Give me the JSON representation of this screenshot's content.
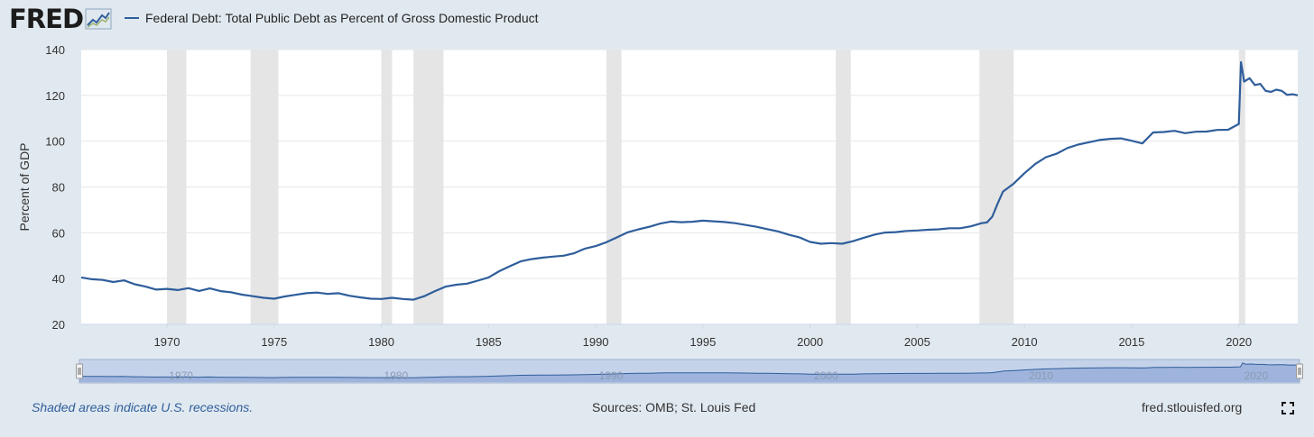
{
  "logo": {
    "text": "FRED",
    "icon": "chart-line-icon"
  },
  "legend": {
    "label": "Federal Debt: Total Public Debt as Percent of Gross Domestic Product",
    "color": "#2f5e9b"
  },
  "footer": {
    "recessions_note": "Shaded areas indicate U.S. recessions.",
    "sources": "Sources: OMB; St. Louis Fed",
    "site": "fred.stlouisfed.org",
    "fullscreen_icon": "fullscreen-icon"
  },
  "chart_data": {
    "type": "line",
    "title": "Federal Debt: Total Public Debt as Percent of Gross Domestic Product",
    "xlabel": "",
    "ylabel": "Percent of GDP",
    "xlim": [
      1966,
      2022.75
    ],
    "ylim": [
      20,
      140
    ],
    "yticks": [
      20,
      40,
      60,
      80,
      100,
      120,
      140
    ],
    "ytick_labels": [
      "20",
      "40",
      "60",
      "80",
      "100",
      "120",
      "140"
    ],
    "xticks": [
      1970,
      1975,
      1980,
      1985,
      1990,
      1995,
      2000,
      2005,
      2010,
      2015,
      2020
    ],
    "xtick_labels": [
      "1970",
      "1975",
      "1980",
      "1985",
      "1990",
      "1995",
      "2000",
      "2005",
      "2010",
      "2015",
      "2020"
    ],
    "navigator_ticks": [
      "1970",
      "1980",
      "1990",
      "2000",
      "2010",
      "2020"
    ],
    "grid": true,
    "line_color": "#2f5e9b",
    "recession_color": "#e5e5e5",
    "recessions": [
      [
        1970.0,
        1970.9
      ],
      [
        1973.9,
        1975.2
      ],
      [
        1980.0,
        1980.5
      ],
      [
        1981.5,
        1982.9
      ],
      [
        1990.5,
        1991.2
      ],
      [
        2001.2,
        2001.9
      ],
      [
        2007.9,
        2009.5
      ],
      [
        2020.0,
        2020.3
      ]
    ],
    "series": [
      {
        "name": "Federal Debt: Total Public Debt as Percent of Gross Domestic Product",
        "x": [
          1966.0,
          1966.5,
          1967.0,
          1967.5,
          1968.0,
          1968.5,
          1969.0,
          1969.5,
          1970.0,
          1970.5,
          1971.0,
          1971.5,
          1972.0,
          1972.5,
          1973.0,
          1973.5,
          1974.0,
          1974.5,
          1975.0,
          1975.5,
          1976.0,
          1976.5,
          1977.0,
          1977.5,
          1978.0,
          1978.5,
          1979.0,
          1979.5,
          1980.0,
          1980.5,
          1981.0,
          1981.5,
          1982.0,
          1982.5,
          1983.0,
          1983.5,
          1984.0,
          1984.5,
          1985.0,
          1985.5,
          1986.0,
          1986.5,
          1987.0,
          1987.5,
          1988.0,
          1988.5,
          1989.0,
          1989.5,
          1990.0,
          1990.5,
          1991.0,
          1991.5,
          1992.0,
          1992.5,
          1993.0,
          1993.5,
          1994.0,
          1994.5,
          1995.0,
          1995.5,
          1996.0,
          1996.5,
          1997.0,
          1997.5,
          1998.0,
          1998.5,
          1999.0,
          1999.5,
          2000.0,
          2000.5,
          2001.0,
          2001.5,
          2002.0,
          2002.5,
          2003.0,
          2003.5,
          2004.0,
          2004.5,
          2005.0,
          2005.5,
          2006.0,
          2006.5,
          2007.0,
          2007.5,
          2008.0,
          2008.25,
          2008.5,
          2008.75,
          2009.0,
          2009.5,
          2010.0,
          2010.5,
          2011.0,
          2011.5,
          2012.0,
          2012.5,
          2013.0,
          2013.5,
          2014.0,
          2014.5,
          2015.0,
          2015.5,
          2016.0,
          2016.5,
          2017.0,
          2017.5,
          2018.0,
          2018.5,
          2019.0,
          2019.5,
          2020.0,
          2020.1,
          2020.25,
          2020.5,
          2020.75,
          2021.0,
          2021.25,
          2021.5,
          2021.75,
          2022.0,
          2022.25,
          2022.5,
          2022.75
        ],
        "values": [
          40.5,
          39.7,
          39.4,
          38.5,
          39.2,
          37.5,
          36.5,
          35.2,
          35.5,
          35.0,
          35.8,
          34.6,
          35.7,
          34.5,
          34.0,
          33.0,
          32.3,
          31.6,
          31.2,
          32.2,
          32.9,
          33.6,
          33.9,
          33.3,
          33.6,
          32.5,
          31.8,
          31.2,
          31.1,
          31.6,
          31.1,
          30.8,
          32.3,
          34.5,
          36.5,
          37.3,
          37.8,
          39.1,
          40.5,
          43.2,
          45.4,
          47.5,
          48.5,
          49.1,
          49.6,
          50.0,
          51.1,
          53.1,
          54.2,
          55.9,
          58.0,
          60.2,
          61.5,
          62.6,
          64.0,
          64.9,
          64.6,
          64.8,
          65.3,
          65.0,
          64.7,
          64.2,
          63.4,
          62.6,
          61.6,
          60.6,
          59.2,
          58.0,
          56.0,
          55.2,
          55.5,
          55.2,
          56.3,
          57.8,
          59.2,
          60.1,
          60.3,
          60.8,
          61.0,
          61.3,
          61.5,
          62.0,
          62.0,
          62.8,
          64.2,
          64.5,
          67.0,
          72.8,
          78.0,
          81.5,
          86.0,
          90.0,
          93.0,
          94.5,
          97.0,
          98.5,
          99.5,
          100.5,
          101.0,
          101.2,
          100.2,
          99.0,
          103.8,
          104.0,
          104.5,
          103.5,
          104.1,
          104.2,
          104.9,
          105.0,
          107.5,
          134.5,
          126.0,
          127.5,
          124.5,
          125.0,
          122.0,
          121.5,
          122.5,
          122.0,
          120.2,
          120.5,
          120.0
        ]
      }
    ]
  }
}
